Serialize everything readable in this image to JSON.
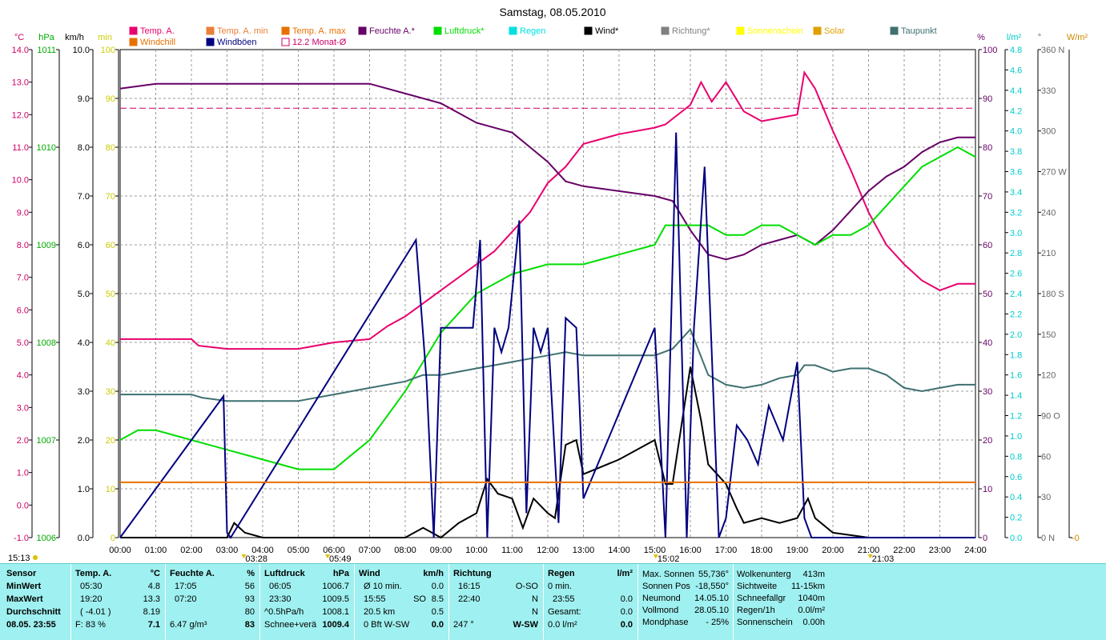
{
  "chart_data": {
    "type": "line",
    "title": "Samstag, 08.05.2010",
    "x_ticks": [
      "00:00",
      "01:00",
      "02:00",
      "03:00",
      "04:00",
      "05:00",
      "06:00",
      "07:00",
      "08:00",
      "09:00",
      "10:00",
      "11:00",
      "12:00",
      "13:00",
      "14:00",
      "15:00",
      "16:00",
      "17:00",
      "18:00",
      "19:00",
      "20:00",
      "21:00",
      "22:00",
      "23:00",
      "24:00"
    ],
    "xlim": [
      0,
      24
    ],
    "axes": {
      "temp_c": {
        "unit": "°C",
        "color": "#cc0066",
        "ticks": [
          "14.0",
          "13.0",
          "12.0",
          "11.0",
          "10.0",
          "9.0",
          "8.0",
          "7.0",
          "6.0",
          "5.0",
          "4.0",
          "3.0",
          "2.0",
          "1.0",
          "0.0",
          "-1.0"
        ],
        "range": [
          -1,
          14
        ]
      },
      "pressure_hpa": {
        "unit": "hPa",
        "color": "#00aa00",
        "ticks": [
          "1011",
          "1010",
          "1009",
          "1008",
          "1007",
          "1006"
        ],
        "range": [
          1006,
          1011
        ]
      },
      "wind_kmh": {
        "unit": "km/h",
        "color": "#000000",
        "ticks": [
          "10.0",
          "9.0",
          "8.0",
          "7.0",
          "6.0",
          "5.0",
          "4.0",
          "3.0",
          "2.0",
          "1.0",
          "0.0"
        ],
        "range": [
          0,
          10
        ]
      },
      "sun_min": {
        "unit": "min",
        "color": "#cccc00",
        "ticks": [
          "100",
          "90",
          "80",
          "70",
          "60",
          "50",
          "40",
          "30",
          "20",
          "10",
          "0"
        ],
        "range": [
          0,
          100
        ]
      },
      "humidity_pct": {
        "unit": "%",
        "color": "#660066",
        "ticks": [
          "100",
          "90",
          "80",
          "70",
          "60",
          "50",
          "40",
          "30",
          "20",
          "10",
          "0"
        ],
        "range": [
          0,
          100
        ]
      },
      "rain_lm2": {
        "unit": "l/m²",
        "color": "#00cccc",
        "ticks": [
          "4.8",
          "4.6",
          "4.4",
          "4.2",
          "4.0",
          "3.8",
          "3.6",
          "3.4",
          "3.2",
          "3.0",
          "2.8",
          "2.6",
          "2.4",
          "2.2",
          "2.0",
          "1.8",
          "1.6",
          "1.4",
          "1.2",
          "1.0",
          "0.8",
          "0.6",
          "0.4",
          "0.2",
          "0.0"
        ],
        "range": [
          0,
          5
        ]
      },
      "direction_deg": {
        "unit": "°",
        "color": "#666666",
        "ticks": [
          "360 N",
          "330",
          "300",
          "270 W",
          "240",
          "210",
          "180 S",
          "150",
          "120",
          "90  O",
          "60",
          "30",
          "0    N"
        ],
        "range": [
          0,
          360
        ]
      },
      "solar_wm2": {
        "unit": "W/m²",
        "color": "#cc8800",
        "ticks": [
          "-0"
        ],
        "range": [
          0,
          360
        ]
      }
    },
    "legend": [
      {
        "name": "Temp. A.",
        "color": "#e8006e"
      },
      {
        "name": "Windchill",
        "color": "#e87000"
      },
      {
        "name": "Temp. A. min",
        "color": "#e8803a"
      },
      {
        "name": "Windböen",
        "color": "#000080"
      },
      {
        "name": "Temp. A. max",
        "color": "#e87000"
      },
      {
        "name": "12.2 Monat-Ø",
        "color": "#cc0066",
        "outline": true
      },
      {
        "name": "Feuchte A.*",
        "color": "#660066"
      },
      {
        "name": "Luftdruck*",
        "color": "#00dd00"
      },
      {
        "name": "Regen",
        "color": "#00e0e0"
      },
      {
        "name": "Wind*",
        "color": "#000000"
      },
      {
        "name": "Richtung*",
        "color": "#808080"
      },
      {
        "name": "Sonnenschein",
        "color": "#ffff00"
      },
      {
        "name": "Solar",
        "color": "#e0a000"
      },
      {
        "name": "Taupunkt",
        "color": "#3f7070"
      }
    ],
    "series": [
      {
        "name": "Temp. A.",
        "axis": "temp_c",
        "color": "#e8006e",
        "x": [
          0,
          2,
          2.2,
          3,
          4,
          5,
          6,
          7,
          7.5,
          8,
          8.5,
          9,
          9.5,
          10,
          10.5,
          11,
          11.5,
          12,
          12.5,
          13,
          14,
          15,
          15.3,
          16,
          16.3,
          16.6,
          17,
          17.5,
          18,
          18.5,
          19,
          19.2,
          19.5,
          20,
          20.5,
          21,
          21.5,
          22,
          22.5,
          23,
          23.5,
          24
        ],
        "y": [
          5.1,
          5.1,
          4.9,
          4.8,
          4.8,
          4.8,
          5.0,
          5.1,
          5.5,
          5.8,
          6.2,
          6.6,
          7.0,
          7.4,
          7.8,
          8.4,
          9.0,
          9.9,
          10.4,
          11.1,
          11.4,
          11.6,
          11.7,
          12.3,
          13.0,
          12.4,
          13.0,
          12.1,
          11.8,
          11.9,
          12.0,
          13.3,
          12.8,
          11.5,
          10.3,
          9.0,
          8.0,
          7.4,
          6.9,
          6.6,
          6.8,
          6.8
        ]
      },
      {
        "name": "Feuchte A.*",
        "axis": "humidity_pct",
        "color": "#660066",
        "x": [
          0,
          1,
          3,
          5,
          7,
          8,
          9,
          10,
          11,
          11.5,
          12,
          12.5,
          13,
          14,
          15,
          15.5,
          16,
          16.5,
          17,
          17.5,
          18,
          18.5,
          19,
          19.5,
          20,
          20.5,
          21,
          21.5,
          22,
          22.5,
          23,
          23.5,
          24
        ],
        "y": [
          92,
          93,
          93,
          93,
          93,
          91,
          89,
          85,
          83,
          80,
          77,
          73,
          72,
          71,
          70,
          69,
          63,
          58,
          57,
          58,
          60,
          61,
          62,
          60,
          63,
          67,
          71,
          74,
          76,
          79,
          81,
          82,
          82
        ]
      },
      {
        "name": "Luftdruck*",
        "axis": "pressure_hpa",
        "color": "#00dd00",
        "x": [
          0,
          0.5,
          1,
          2,
          3,
          4,
          5,
          6,
          7,
          8,
          8.5,
          9,
          9.5,
          10,
          11,
          12,
          12.5,
          13,
          14,
          15,
          15.3,
          16,
          16.5,
          17,
          17.5,
          18,
          18.5,
          19,
          19.5,
          20,
          20.5,
          21,
          21.5,
          22,
          22.5,
          23,
          23.5,
          24
        ],
        "y": [
          1007.0,
          1007.1,
          1007.1,
          1007.0,
          1006.9,
          1006.8,
          1006.7,
          1006.7,
          1007.0,
          1007.5,
          1007.8,
          1008.1,
          1008.3,
          1008.5,
          1008.7,
          1008.8,
          1008.8,
          1008.8,
          1008.9,
          1009.0,
          1009.2,
          1009.2,
          1009.2,
          1009.1,
          1009.1,
          1009.2,
          1009.2,
          1009.1,
          1009.0,
          1009.1,
          1009.1,
          1009.2,
          1009.4,
          1009.6,
          1009.8,
          1009.9,
          1010.0,
          1009.9
        ]
      },
      {
        "name": "Taupunkt",
        "axis": "temp_c",
        "color": "#3f7070",
        "x": [
          0,
          2,
          2.3,
          3,
          4,
          5,
          6,
          7,
          8,
          8.5,
          9,
          9.5,
          10,
          10.5,
          11,
          11.5,
          12,
          12.5,
          13,
          14,
          15,
          15.5,
          16,
          16.5,
          17,
          17.5,
          18,
          18.5,
          19,
          19.2,
          19.5,
          20,
          20.5,
          21,
          21.5,
          22,
          22.5,
          23,
          23.5,
          24
        ],
        "y": [
          3.4,
          3.4,
          3.3,
          3.2,
          3.2,
          3.2,
          3.4,
          3.6,
          3.8,
          4.0,
          4.0,
          4.1,
          4.2,
          4.3,
          4.4,
          4.5,
          4.6,
          4.7,
          4.6,
          4.6,
          4.6,
          4.8,
          5.4,
          4.0,
          3.7,
          3.6,
          3.7,
          3.9,
          4.0,
          4.3,
          4.3,
          4.1,
          4.2,
          4.2,
          4.0,
          3.6,
          3.5,
          3.6,
          3.7,
          3.7
        ]
      },
      {
        "name": "Wind*",
        "axis": "wind_kmh",
        "color": "#000000",
        "x": [
          0,
          3,
          3.2,
          3.5,
          4,
          8,
          8.5,
          9,
          9.5,
          10,
          10.3,
          10.6,
          11,
          11.3,
          11.6,
          12,
          12.2,
          12.5,
          12.8,
          13,
          14,
          15,
          15.3,
          15.5,
          16,
          16.3,
          16.5,
          17,
          17.3,
          17.5,
          18,
          18.5,
          19,
          19.3,
          19.5,
          20,
          21,
          24
        ],
        "y": [
          0,
          0,
          0.3,
          0.1,
          0,
          0,
          0.2,
          0,
          0.3,
          0.5,
          1.2,
          0.9,
          0.8,
          0.2,
          0.8,
          0.5,
          0.4,
          1.9,
          2.0,
          1.3,
          1.6,
          2.0,
          1.1,
          1.1,
          3.5,
          2.4,
          1.5,
          1.1,
          0.6,
          0.3,
          0.4,
          0.3,
          0.4,
          0.8,
          0.4,
          0.1,
          0,
          0
        ]
      },
      {
        "name": "Windböen",
        "axis": "wind_kmh",
        "color": "#000080",
        "x": [
          0,
          2.9,
          3.0,
          3.1,
          8.3,
          8.6,
          8.8,
          9.0,
          9.9,
          10.1,
          10.3,
          10.5,
          10.7,
          10.9,
          11.2,
          11.4,
          11.6,
          11.8,
          12.0,
          12.3,
          12.5,
          12.8,
          13.0,
          15.0,
          15.3,
          15.6,
          15.9,
          16.1,
          16.4,
          16.8,
          17.0,
          17.3,
          17.6,
          17.9,
          18.2,
          18.6,
          19.0,
          19.2,
          19.4,
          24
        ],
        "y": [
          0,
          2.9,
          0.1,
          0,
          6.1,
          3.2,
          0,
          4.3,
          4.3,
          6.1,
          0,
          4.3,
          3.8,
          4.3,
          6.5,
          0.5,
          4.3,
          3.8,
          4.3,
          0.3,
          4.5,
          4.3,
          0.8,
          4.3,
          0,
          8.3,
          0,
          4.3,
          7.6,
          0,
          0.4,
          2.3,
          2.0,
          1.5,
          2.7,
          2.0,
          3.6,
          0.4,
          0,
          0
        ]
      },
      {
        "name": "Windchill",
        "axis": "temp_c",
        "color": "#e87000",
        "x": [
          0,
          24
        ],
        "y": [
          0.7,
          0.7
        ]
      },
      {
        "name": "12.2 Monat-Ø",
        "axis": "temp_c",
        "color": "#cc0066",
        "x": [
          0,
          24
        ],
        "y": [
          12.2,
          12.2
        ]
      }
    ],
    "sun_markers": [
      {
        "label": "03:28",
        "x": 3.47
      },
      {
        "label": "05:49",
        "x": 5.82
      },
      {
        "label": "15:02",
        "x": 15.03
      },
      {
        "label": "21:03",
        "x": 21.05
      }
    ],
    "corner_time": "15:13"
  },
  "footer": {
    "sensor": {
      "header": "Sensor",
      "rows": [
        "MinWert",
        "MaxWert",
        "Durchschnitt",
        "08.05. 23:55"
      ]
    },
    "temp": {
      "header": "Temp. A.",
      "unit": "°C",
      "rows": [
        [
          "05:30",
          "4.8"
        ],
        [
          "19:20",
          "13.3"
        ],
        [
          "( -4.01 )",
          "8.19"
        ],
        [
          "F: 83 %",
          "7.1"
        ]
      ]
    },
    "feuchte": {
      "header": "Feuchte A.",
      "unit": "%",
      "rows": [
        [
          "17:05",
          "56"
        ],
        [
          "07:20",
          "93"
        ],
        [
          "",
          "80"
        ],
        [
          "6.47 g/m³",
          "83"
        ]
      ]
    },
    "luftdruck": {
      "header": "Luftdruck",
      "unit": "hPa",
      "rows": [
        [
          "06:05",
          "1006.7"
        ],
        [
          "23:30",
          "1009.5"
        ],
        [
          "^0.5hPa/h",
          "1008.1"
        ],
        [
          "Schnee+verä",
          "1009.4"
        ]
      ]
    },
    "wind": {
      "header": "Wind",
      "unit": "km/h",
      "rows": [
        [
          "Ø 10 min.",
          "",
          "0.0"
        ],
        [
          "15:55",
          "SO",
          "8.5"
        ],
        [
          "20.5 km",
          "",
          "0.5"
        ],
        [
          "0 Bft W-SW",
          "",
          "0.0"
        ]
      ]
    },
    "richtung": {
      "header": "Richtung",
      "rows": [
        [
          "16:15",
          "O-SO"
        ],
        [
          "22:40",
          "N"
        ],
        [
          "",
          "N"
        ],
        [
          "247 °",
          "W-SW"
        ]
      ]
    },
    "regen": {
      "header": "Regen",
      "unit": "l/m²",
      "rows": [
        [
          "0 min.",
          ""
        ],
        [
          "23:55",
          "0.0"
        ],
        [
          "Gesamt:",
          "0.0"
        ],
        [
          "0.0 l/m²",
          "0.0"
        ]
      ]
    },
    "sonne": {
      "rows": [
        [
          "Max. Sonnen",
          "55,736°"
        ],
        [
          "Sonnen Pos",
          "-18,550°"
        ],
        [
          "Neumond",
          "14.05.10"
        ],
        [
          "Vollmond",
          "28.05.10"
        ],
        [
          "Mondphase",
          "- 25%"
        ]
      ]
    },
    "wolken": {
      "rows": [
        [
          "Wolkenunterg",
          "413m"
        ],
        [
          "Sichtweite",
          "11-15km"
        ],
        [
          "Schneefallgr",
          "1040m"
        ],
        [
          "Regen/1h",
          "0.0l/m²"
        ],
        [
          "Sonnenschein",
          "0.00h"
        ]
      ]
    }
  }
}
